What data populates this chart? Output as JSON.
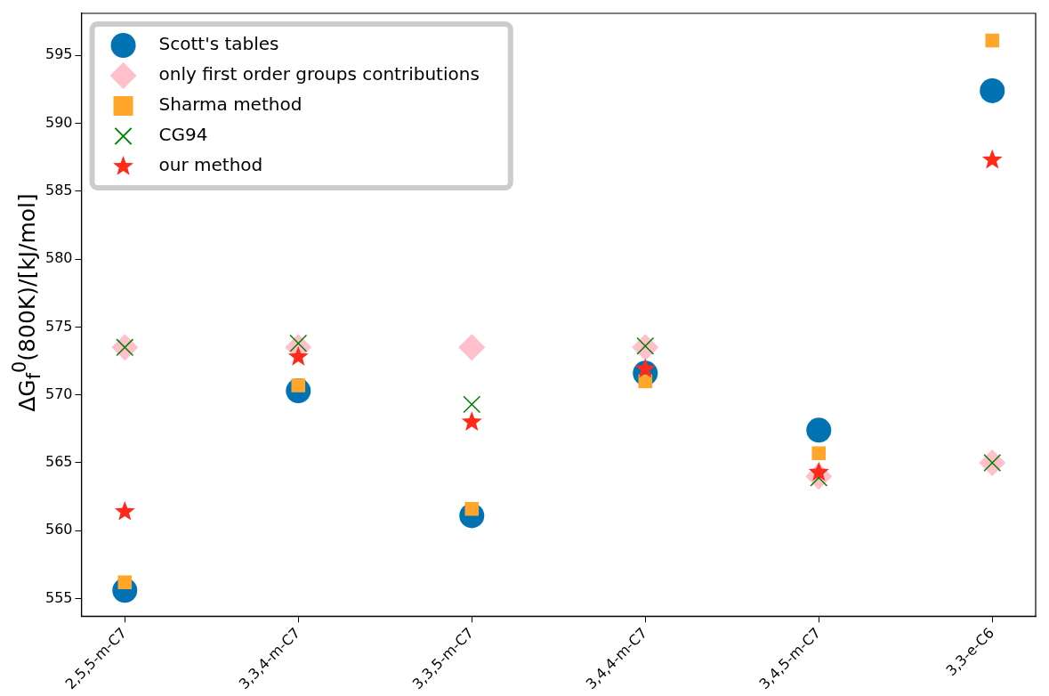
{
  "chart_data": {
    "type": "scatter",
    "ylabel": "ΔG$_{f}$$^{0}$(800K)/[kJ/mol]",
    "categories": [
      "2,5,5-m-C7",
      "3,3,4-m-C7",
      "3,3,5-m-C7",
      "3,4,4-m-C7",
      "3,4,5-m-C7",
      "3,3-e-C6"
    ],
    "series": [
      {
        "name": "Scott's tables",
        "color": "#0173b2",
        "marker": "circle",
        "values": [
          555.6,
          570.3,
          561.1,
          571.6,
          567.4,
          592.4
        ]
      },
      {
        "name": "only first order groups contributions",
        "color": "#ffc0cb",
        "marker": "diamond",
        "values": [
          573.5,
          573.5,
          573.5,
          573.5,
          564.0,
          565.0
        ]
      },
      {
        "name": "Sharma method",
        "color": "#ffa62b",
        "marker": "square",
        "values": [
          556.2,
          570.7,
          561.6,
          571.0,
          565.7,
          596.1
        ]
      },
      {
        "name": "CG94",
        "color": "#008000",
        "marker": "cross",
        "values": [
          573.5,
          573.8,
          569.3,
          573.6,
          563.9,
          565.0
        ]
      },
      {
        "name": "our method",
        "color": "#ff2a1a",
        "marker": "star",
        "values": [
          561.4,
          572.8,
          568.0,
          571.9,
          564.3,
          587.3
        ]
      }
    ],
    "ylim": [
      553.7,
      598.1
    ],
    "yticks": [
      555,
      560,
      565,
      570,
      575,
      580,
      585,
      590,
      595
    ],
    "grid": false,
    "legend": "top left"
  }
}
